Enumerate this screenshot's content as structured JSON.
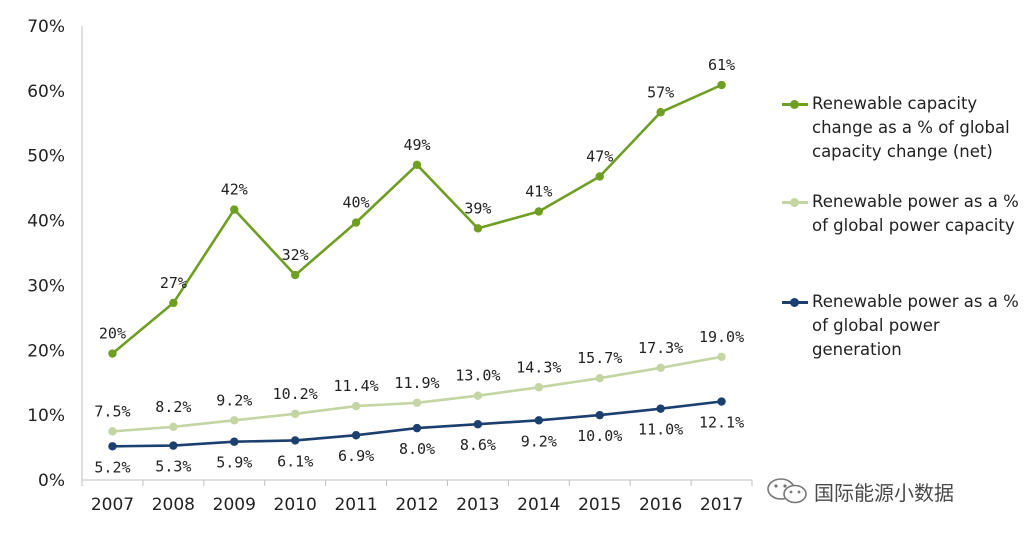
{
  "chart_data": {
    "type": "line",
    "title": "",
    "xlabel": "",
    "ylabel": "",
    "ylim": [
      0,
      70
    ],
    "yticks": [
      "0%",
      "10%",
      "20%",
      "30%",
      "40%",
      "50%",
      "60%",
      "70%"
    ],
    "categories": [
      "2007",
      "2008",
      "2009",
      "2010",
      "2011",
      "2012",
      "2013",
      "2014",
      "2015",
      "2016",
      "2017"
    ],
    "series": [
      {
        "name": "Renewable capacity change as a % of global capacity change (net)",
        "color": "#6e9e22",
        "values": [
          19.5,
          27.3,
          41.7,
          31.6,
          39.7,
          48.6,
          38.8,
          41.4,
          46.8,
          56.7,
          60.9
        ],
        "labels": [
          "20%",
          "27%",
          "42%",
          "32%",
          "40%",
          "49%",
          "39%",
          "41%",
          "47%",
          "57%",
          "61%"
        ],
        "label_side": "above"
      },
      {
        "name": "Renewable power as a % of global power capacity",
        "color": "#c3d5a3",
        "values": [
          7.5,
          8.2,
          9.2,
          10.2,
          11.4,
          11.9,
          13.0,
          14.3,
          15.7,
          17.3,
          19.0
        ],
        "labels": [
          "7.5%",
          "8.2%",
          "9.2%",
          "10.2%",
          "11.4%",
          "11.9%",
          "13.0%",
          "14.3%",
          "15.7%",
          "17.3%",
          "19.0%"
        ],
        "label_side": "above"
      },
      {
        "name": "Renewable power as a % of global power generation",
        "color": "#1b3f6e",
        "values": [
          5.2,
          5.3,
          5.9,
          6.1,
          6.9,
          8.0,
          8.6,
          9.2,
          10.0,
          11.0,
          12.1
        ],
        "labels": [
          "5.2%",
          "5.3%",
          "5.9%",
          "6.1%",
          "6.9%",
          "8.0%",
          "8.6%",
          "9.2%",
          "10.0%",
          "11.0%",
          "12.1%"
        ],
        "label_side": "below"
      }
    ],
    "legend_position": "right"
  },
  "watermark": {
    "text": "国际能源小数据",
    "icon": "wechat-icon"
  }
}
